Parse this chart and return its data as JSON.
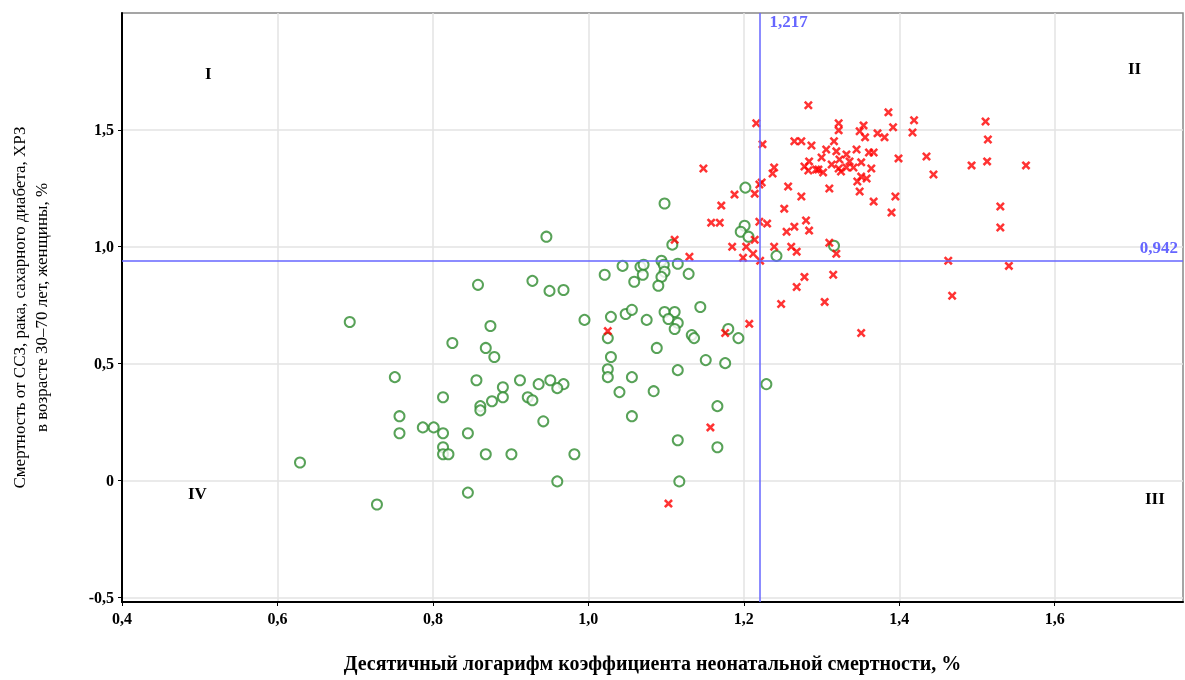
{
  "chart_data": {
    "type": "scatter",
    "xlabel": "Десятичный логарифм коэффициента неонатальной смертности, %",
    "ylabel": "Смертность от ССЗ, рака, сахарного диабета, ХРЗ\nв возрасте 30–70 лет, женщины, %",
    "xlim": [
      0.4,
      1.765
    ],
    "ylim": [
      -0.52,
      2.0
    ],
    "xticks": [
      {
        "value": 0.4,
        "label": "0,4"
      },
      {
        "value": 0.6,
        "label": "0,6"
      },
      {
        "value": 0.8,
        "label": "0,8"
      },
      {
        "value": 1.0,
        "label": "1,0"
      },
      {
        "value": 1.2,
        "label": "1,2"
      },
      {
        "value": 1.4,
        "label": "1,4"
      },
      {
        "value": 1.6,
        "label": "1,6"
      }
    ],
    "yticks": [
      {
        "value": -0.5,
        "label": "-0,5"
      },
      0,
      {
        "value": 0.5,
        "label": "0,5"
      },
      {
        "value": 1.0,
        "label": "1,0"
      },
      {
        "value": 1.5,
        "label": "1,5"
      }
    ],
    "grid": true,
    "annotations": [
      "I",
      "II",
      "III",
      "IV"
    ],
    "ref_lines": [
      {
        "axis": "x",
        "value": 1.217,
        "label": "1,217",
        "color": "#6666ff"
      },
      {
        "axis": "y",
        "value": 0.942,
        "label": "0,942",
        "color": "#6666ff"
      }
    ],
    "series": [
      {
        "color": "#2e8b2e",
        "marker": "circle",
        "x": [
          0.629,
          0.693,
          0.728,
          0.751,
          0.757,
          0.757,
          0.787,
          0.801,
          0.813,
          0.813,
          0.813,
          0.813,
          0.82,
          0.845,
          0.845,
          0.825,
          0.874,
          0.868,
          0.879,
          0.856,
          0.89,
          0.89,
          0.876,
          0.861,
          0.861,
          0.912,
          0.936,
          0.951,
          0.968,
          0.96,
          0.922,
          0.928,
          0.942,
          0.868,
          0.901,
          0.982,
          0.96,
          0.995,
          1.098,
          1.202,
          1.201,
          1.196,
          1.206,
          1.108,
          1.242,
          1.316,
          1.044,
          1.067,
          1.071,
          1.094,
          1.097,
          1.115,
          1.021,
          1.07,
          1.098,
          1.094,
          1.129,
          1.059,
          1.09,
          0.968,
          0.946,
          0.858,
          0.928,
          0.95,
          1.029,
          1.048,
          1.056,
          1.075,
          1.098,
          1.111,
          1.103,
          1.115,
          1.111,
          1.144,
          1.133,
          1.136,
          1.18,
          1.193,
          1.025,
          1.088,
          1.029,
          1.151,
          1.176,
          1.025,
          1.025,
          1.056,
          1.115,
          1.04,
          1.084,
          1.229,
          1.056,
          1.166,
          1.115,
          1.166,
          1.117
        ],
        "values": [
          0.077,
          0.678,
          -0.103,
          0.442,
          0.275,
          0.202,
          0.227,
          0.227,
          0.356,
          0.202,
          0.142,
          0.112,
          0.112,
          -0.052,
          0.202,
          0.588,
          0.661,
          0.567,
          0.528,
          0.429,
          0.399,
          0.356,
          0.339,
          0.318,
          0.3,
          0.429,
          0.412,
          0.429,
          0.412,
          0.395,
          0.356,
          0.343,
          0.253,
          0.112,
          0.112,
          0.112,
          -0.004,
          0.687,
          1.185,
          1.253,
          1.09,
          1.064,
          1.043,
          1.009,
          0.961,
          1.004,
          0.918,
          0.914,
          0.923,
          0.94,
          0.923,
          0.927,
          0.88,
          0.88,
          0.893,
          0.871,
          0.884,
          0.85,
          0.833,
          0.815,
          1.043,
          0.837,
          0.854,
          0.811,
          0.7,
          0.712,
          0.73,
          0.687,
          0.721,
          0.721,
          0.691,
          0.674,
          0.648,
          0.742,
          0.622,
          0.609,
          0.648,
          0.609,
          0.609,
          0.567,
          0.528,
          0.515,
          0.502,
          0.476,
          0.442,
          0.442,
          0.472,
          0.378,
          0.382,
          0.412,
          0.275,
          0.318,
          0.172,
          0.142,
          -0.004
        ]
      },
      {
        "color": "#ff0000",
        "marker": "cross",
        "x": [
          1.283,
          1.386,
          1.419,
          1.392,
          1.417,
          1.216,
          1.322,
          1.322,
          1.354,
          1.349,
          1.356,
          1.372,
          1.381,
          1.224,
          1.265,
          1.274,
          1.287,
          1.316,
          1.306,
          1.319,
          1.332,
          1.345,
          1.323,
          1.336,
          1.3,
          1.313,
          1.332,
          1.351,
          1.325,
          1.293,
          1.284,
          1.361,
          1.367,
          1.399,
          1.148,
          1.278,
          1.283,
          1.296,
          1.302,
          1.322,
          1.341,
          1.364,
          1.239,
          1.237,
          1.351,
          1.358,
          1.346,
          1.223,
          1.22,
          1.257,
          1.31,
          1.349,
          1.188,
          1.214,
          1.274,
          1.395,
          1.367,
          1.171,
          1.252,
          1.39,
          1.158,
          1.169,
          1.22,
          1.23,
          1.28,
          1.265,
          1.284,
          1.255,
          1.214,
          1.185,
          1.203,
          1.239,
          1.261,
          1.268,
          1.31,
          1.319,
          1.199,
          1.212,
          1.221,
          1.278,
          1.268,
          1.315,
          1.248,
          1.304,
          1.111,
          1.13,
          1.025,
          1.176,
          1.207,
          1.157,
          1.103,
          1.351,
          1.511,
          1.514,
          1.513,
          1.435,
          1.444,
          1.493,
          1.563,
          1.53,
          1.53,
          1.463,
          1.541,
          1.468
        ],
        "values": [
          1.605,
          1.575,
          1.541,
          1.511,
          1.489,
          1.528,
          1.528,
          1.498,
          1.519,
          1.494,
          1.468,
          1.485,
          1.468,
          1.438,
          1.451,
          1.451,
          1.433,
          1.451,
          1.416,
          1.408,
          1.395,
          1.416,
          1.373,
          1.365,
          1.382,
          1.352,
          1.339,
          1.361,
          1.322,
          1.33,
          1.365,
          1.403,
          1.403,
          1.378,
          1.335,
          1.343,
          1.326,
          1.33,
          1.318,
          1.335,
          1.339,
          1.335,
          1.339,
          1.313,
          1.3,
          1.292,
          1.279,
          1.275,
          1.266,
          1.258,
          1.249,
          1.236,
          1.223,
          1.227,
          1.215,
          1.215,
          1.193,
          1.176,
          1.163,
          1.146,
          1.103,
          1.103,
          1.107,
          1.099,
          1.112,
          1.086,
          1.069,
          1.064,
          1.03,
          1.0,
          1.0,
          1.0,
          1.0,
          0.979,
          1.017,
          0.97,
          0.953,
          0.97,
          0.94,
          0.871,
          0.828,
          0.88,
          0.755,
          0.764,
          1.03,
          0.957,
          0.639,
          0.631,
          0.67,
          0.227,
          -0.099,
          0.631,
          1.536,
          1.459,
          1.365,
          1.386,
          1.309,
          1.348,
          1.348,
          1.172,
          1.082,
          0.94,
          0.918,
          0.79
        ]
      }
    ]
  }
}
